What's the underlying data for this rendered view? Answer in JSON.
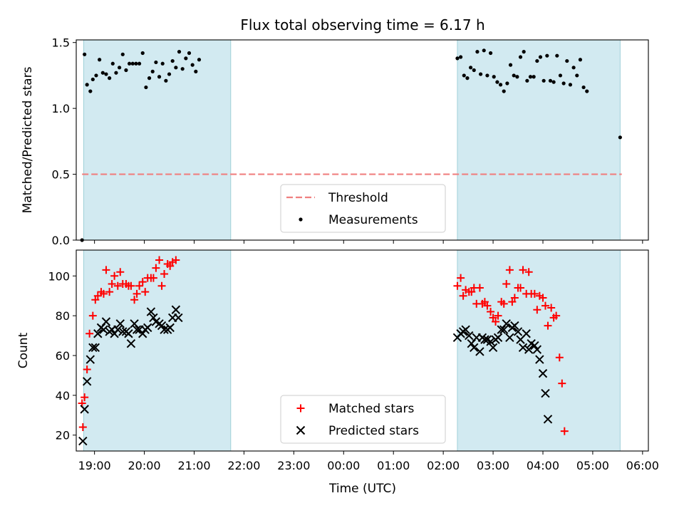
{
  "chart_data": [
    {
      "type": "scatter",
      "title": "Flux total observing time = 6.17 h",
      "xlabel": "",
      "ylabel": "Matched/Predicted stars",
      "ylim": [
        0,
        1.52
      ],
      "yticks": [
        0.0,
        0.5,
        1.0,
        1.5
      ],
      "ytick_labels": [
        "0.0",
        "0.5",
        "1.0",
        "1.5"
      ],
      "xlim": [
        "18:38",
        "06:07"
      ],
      "xticks": [
        "19:00",
        "20:00",
        "21:00",
        "22:00",
        "23:00",
        "00:00",
        "01:00",
        "02:00",
        "03:00",
        "04:00",
        "05:00",
        "06:00"
      ],
      "shaded_intervals": [
        [
          "18:47",
          "21:44"
        ],
        [
          "02:17",
          "05:33"
        ]
      ],
      "threshold": {
        "name": "Threshold",
        "value": 0.5,
        "x_range": [
          "18:45",
          "05:35"
        ],
        "color": "#f08080",
        "style": "dashed"
      },
      "legend": {
        "placement": "lower-center",
        "entries": [
          "Threshold",
          "Measurements"
        ]
      },
      "series": [
        {
          "name": "Measurements",
          "marker": "dot",
          "color": "#000000",
          "points": [
            [
              "18:45",
              0.0
            ],
            [
              "18:48",
              1.41
            ],
            [
              "18:51",
              1.18
            ],
            [
              "18:55",
              1.13
            ],
            [
              "18:58",
              1.22
            ],
            [
              "19:02",
              1.25
            ],
            [
              "19:06",
              1.37
            ],
            [
              "19:10",
              1.27
            ],
            [
              "19:14",
              1.26
            ],
            [
              "19:18",
              1.23
            ],
            [
              "19:22",
              1.34
            ],
            [
              "19:26",
              1.27
            ],
            [
              "19:30",
              1.31
            ],
            [
              "19:34",
              1.41
            ],
            [
              "19:38",
              1.29
            ],
            [
              "19:42",
              1.34
            ],
            [
              "19:46",
              1.34
            ],
            [
              "19:50",
              1.34
            ],
            [
              "19:54",
              1.34
            ],
            [
              "19:58",
              1.42
            ],
            [
              "20:02",
              1.16
            ],
            [
              "20:06",
              1.23
            ],
            [
              "20:10",
              1.28
            ],
            [
              "20:14",
              1.35
            ],
            [
              "20:18",
              1.24
            ],
            [
              "20:22",
              1.34
            ],
            [
              "20:26",
              1.21
            ],
            [
              "20:30",
              1.26
            ],
            [
              "20:34",
              1.36
            ],
            [
              "20:38",
              1.31
            ],
            [
              "20:42",
              1.43
            ],
            [
              "20:46",
              1.3
            ],
            [
              "20:50",
              1.38
            ],
            [
              "20:54",
              1.42
            ],
            [
              "20:58",
              1.33
            ],
            [
              "21:02",
              1.28
            ],
            [
              "21:06",
              1.37
            ],
            [
              "02:17",
              1.38
            ],
            [
              "02:21",
              1.39
            ],
            [
              "02:25",
              1.25
            ],
            [
              "02:29",
              1.23
            ],
            [
              "02:33",
              1.31
            ],
            [
              "02:37",
              1.29
            ],
            [
              "02:41",
              1.43
            ],
            [
              "02:45",
              1.26
            ],
            [
              "02:49",
              1.44
            ],
            [
              "02:53",
              1.25
            ],
            [
              "02:57",
              1.42
            ],
            [
              "03:01",
              1.24
            ],
            [
              "03:05",
              1.2
            ],
            [
              "03:09",
              1.18
            ],
            [
              "03:13",
              1.13
            ],
            [
              "03:17",
              1.19
            ],
            [
              "03:21",
              1.33
            ],
            [
              "03:25",
              1.25
            ],
            [
              "03:29",
              1.24
            ],
            [
              "03:33",
              1.39
            ],
            [
              "03:37",
              1.43
            ],
            [
              "03:41",
              1.21
            ],
            [
              "03:45",
              1.24
            ],
            [
              "03:49",
              1.24
            ],
            [
              "03:53",
              1.36
            ],
            [
              "03:57",
              1.39
            ],
            [
              "04:01",
              1.21
            ],
            [
              "04:05",
              1.4
            ],
            [
              "04:09",
              1.21
            ],
            [
              "04:13",
              1.2
            ],
            [
              "04:17",
              1.4
            ],
            [
              "04:21",
              1.25
            ],
            [
              "04:25",
              1.19
            ],
            [
              "04:29",
              1.36
            ],
            [
              "04:33",
              1.18
            ],
            [
              "04:37",
              1.31
            ],
            [
              "04:41",
              1.25
            ],
            [
              "04:45",
              1.37
            ],
            [
              "04:49",
              1.16
            ],
            [
              "04:53",
              1.13
            ],
            [
              "05:33",
              0.78
            ]
          ]
        }
      ]
    },
    {
      "type": "scatter",
      "title": "",
      "xlabel": "Time (UTC)",
      "ylabel": "Count",
      "ylim": [
        12,
        113
      ],
      "yticks": [
        20,
        40,
        60,
        80,
        100
      ],
      "ytick_labels": [
        "20",
        "40",
        "60",
        "80",
        "100"
      ],
      "xlim": [
        "18:38",
        "06:07"
      ],
      "xticks": [
        "19:00",
        "20:00",
        "21:00",
        "22:00",
        "23:00",
        "00:00",
        "01:00",
        "02:00",
        "03:00",
        "04:00",
        "05:00",
        "06:00"
      ],
      "xtick_labels": [
        "19:00",
        "20:00",
        "21:00",
        "22:00",
        "23:00",
        "00:00",
        "01:00",
        "02:00",
        "03:00",
        "04:00",
        "05:00",
        "06:00"
      ],
      "shaded_intervals": [
        [
          "18:47",
          "21:44"
        ],
        [
          "02:17",
          "05:33"
        ]
      ],
      "legend": {
        "placement": "lower-center",
        "entries": [
          "Matched stars",
          "Predicted stars"
        ]
      },
      "series": [
        {
          "name": "Matched stars",
          "marker": "plus",
          "color": "#ff0000",
          "points": [
            [
              "18:45",
              36
            ],
            [
              "18:46",
              24
            ],
            [
              "18:48",
              39
            ],
            [
              "18:51",
              53
            ],
            [
              "18:54",
              71
            ],
            [
              "18:58",
              80
            ],
            [
              "19:01",
              88
            ],
            [
              "19:04",
              90
            ],
            [
              "19:08",
              92
            ],
            [
              "19:11",
              91
            ],
            [
              "19:14",
              103
            ],
            [
              "19:18",
              92
            ],
            [
              "19:21",
              96
            ],
            [
              "19:24",
              100
            ],
            [
              "19:28",
              95
            ],
            [
              "19:31",
              102
            ],
            [
              "19:34",
              96
            ],
            [
              "19:38",
              96
            ],
            [
              "19:41",
              95
            ],
            [
              "19:44",
              95
            ],
            [
              "19:48",
              88
            ],
            [
              "19:51",
              91
            ],
            [
              "19:54",
              95
            ],
            [
              "19:58",
              97
            ],
            [
              "20:01",
              92
            ],
            [
              "20:04",
              99
            ],
            [
              "20:08",
              99
            ],
            [
              "20:11",
              99
            ],
            [
              "20:14",
              104
            ],
            [
              "20:18",
              108
            ],
            [
              "20:21",
              95
            ],
            [
              "20:24",
              101
            ],
            [
              "20:28",
              106
            ],
            [
              "20:31",
              105
            ],
            [
              "20:34",
              107
            ],
            [
              "20:38",
              108
            ],
            [
              "02:17",
              95
            ],
            [
              "02:21",
              99
            ],
            [
              "02:24",
              90
            ],
            [
              "02:27",
              93
            ],
            [
              "02:31",
              92
            ],
            [
              "02:34",
              92
            ],
            [
              "02:37",
              94
            ],
            [
              "02:40",
              86
            ],
            [
              "02:44",
              94
            ],
            [
              "02:47",
              86
            ],
            [
              "02:50",
              87
            ],
            [
              "02:53",
              85
            ],
            [
              "02:57",
              82
            ],
            [
              "03:00",
              79
            ],
            [
              "03:03",
              77
            ],
            [
              "03:06",
              80
            ],
            [
              "03:10",
              87
            ],
            [
              "03:13",
              86
            ],
            [
              "03:16",
              96
            ],
            [
              "03:20",
              103
            ],
            [
              "03:23",
              87
            ],
            [
              "03:26",
              89
            ],
            [
              "03:30",
              94
            ],
            [
              "03:33",
              94
            ],
            [
              "03:36",
              103
            ],
            [
              "03:40",
              91
            ],
            [
              "03:43",
              102
            ],
            [
              "03:46",
              91
            ],
            [
              "03:50",
              91
            ],
            [
              "03:53",
              83
            ],
            [
              "03:56",
              90
            ],
            [
              "04:00",
              89
            ],
            [
              "04:03",
              85
            ],
            [
              "04:06",
              75
            ],
            [
              "04:10",
              84
            ],
            [
              "04:13",
              79
            ],
            [
              "04:16",
              80
            ],
            [
              "04:20",
              59
            ],
            [
              "04:23",
              46
            ],
            [
              "04:26",
              22
            ]
          ]
        },
        {
          "name": "Predicted stars",
          "marker": "x",
          "color": "#000000",
          "points": [
            [
              "18:46",
              17
            ],
            [
              "18:48",
              33
            ],
            [
              "18:51",
              47
            ],
            [
              "18:55",
              58
            ],
            [
              "18:58",
              64
            ],
            [
              "19:01",
              64
            ],
            [
              "19:04",
              71
            ],
            [
              "19:08",
              74
            ],
            [
              "19:11",
              73
            ],
            [
              "19:14",
              77
            ],
            [
              "19:18",
              72
            ],
            [
              "19:21",
              73
            ],
            [
              "19:24",
              71
            ],
            [
              "19:28",
              73
            ],
            [
              "19:31",
              76
            ],
            [
              "19:34",
              72
            ],
            [
              "19:38",
              72
            ],
            [
              "19:41",
              71
            ],
            [
              "19:44",
              66
            ],
            [
              "19:48",
              76
            ],
            [
              "19:51",
              73
            ],
            [
              "19:54",
              73
            ],
            [
              "19:58",
              71
            ],
            [
              "20:01",
              73
            ],
            [
              "20:04",
              74
            ],
            [
              "20:08",
              82
            ],
            [
              "20:11",
              79
            ],
            [
              "20:14",
              77
            ],
            [
              "20:18",
              76
            ],
            [
              "20:21",
              75
            ],
            [
              "20:24",
              73
            ],
            [
              "20:28",
              73
            ],
            [
              "20:31",
              74
            ],
            [
              "20:34",
              79
            ],
            [
              "20:38",
              83
            ],
            [
              "20:41",
              79
            ],
            [
              "02:17",
              69
            ],
            [
              "02:21",
              71
            ],
            [
              "02:24",
              72
            ],
            [
              "02:27",
              73
            ],
            [
              "02:31",
              70
            ],
            [
              "02:34",
              66
            ],
            [
              "02:37",
              64
            ],
            [
              "02:40",
              69
            ],
            [
              "02:44",
              62
            ],
            [
              "02:47",
              69
            ],
            [
              "02:50",
              68
            ],
            [
              "02:53",
              68
            ],
            [
              "02:57",
              67
            ],
            [
              "03:00",
              64
            ],
            [
              "03:03",
              68
            ],
            [
              "03:06",
              69
            ],
            [
              "03:10",
              73
            ],
            [
              "03:13",
              73
            ],
            [
              "03:16",
              76
            ],
            [
              "03:20",
              69
            ],
            [
              "03:23",
              74
            ],
            [
              "03:26",
              75
            ],
            [
              "03:30",
              72
            ],
            [
              "03:33",
              68
            ],
            [
              "03:36",
              64
            ],
            [
              "03:40",
              71
            ],
            [
              "03:43",
              63
            ],
            [
              "03:46",
              66
            ],
            [
              "03:50",
              65
            ],
            [
              "03:53",
              63
            ],
            [
              "03:56",
              58
            ],
            [
              "04:00",
              51
            ],
            [
              "04:03",
              41
            ],
            [
              "04:06",
              28
            ]
          ]
        }
      ]
    }
  ]
}
